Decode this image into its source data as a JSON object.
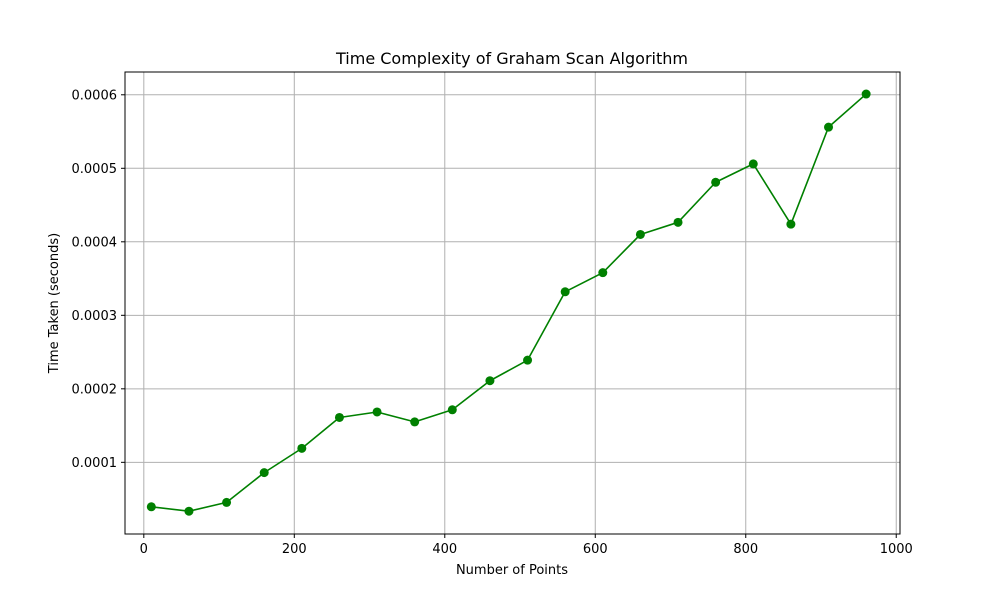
{
  "chart_data": {
    "type": "line",
    "title": "Time Complexity of Graham Scan Algorithm",
    "xlabel": "Number of Points",
    "ylabel": "Time Taken (seconds)",
    "xlim": [
      -25,
      1005
    ],
    "ylim": [
      2.5e-06,
      0.000631
    ],
    "xticks": [
      0,
      200,
      400,
      600,
      800,
      1000
    ],
    "xtick_labels": [
      "0",
      "200",
      "400",
      "600",
      "800",
      "1000"
    ],
    "yticks": [
      0.0001,
      0.0002,
      0.0003,
      0.0004,
      0.0005,
      0.0006
    ],
    "ytick_labels": [
      "0.0001",
      "0.0002",
      "0.0003",
      "0.0004",
      "0.0005",
      "0.0006"
    ],
    "grid": true,
    "series": [
      {
        "color": "#008000",
        "marker": "circle",
        "x": [
          10,
          60,
          110,
          160,
          210,
          260,
          310,
          360,
          410,
          460,
          510,
          560,
          610,
          660,
          710,
          760,
          810,
          860,
          910,
          960
        ],
        "y": [
          3.95e-05,
          3.35e-05,
          4.55e-05,
          8.6e-05,
          0.000119,
          0.000161,
          0.0001685,
          0.000155,
          0.0001715,
          0.000211,
          0.000239,
          0.000332,
          0.000358,
          0.00041,
          0.0004265,
          0.000481,
          0.000506,
          0.000424,
          0.000556,
          0.000601
        ]
      }
    ]
  }
}
